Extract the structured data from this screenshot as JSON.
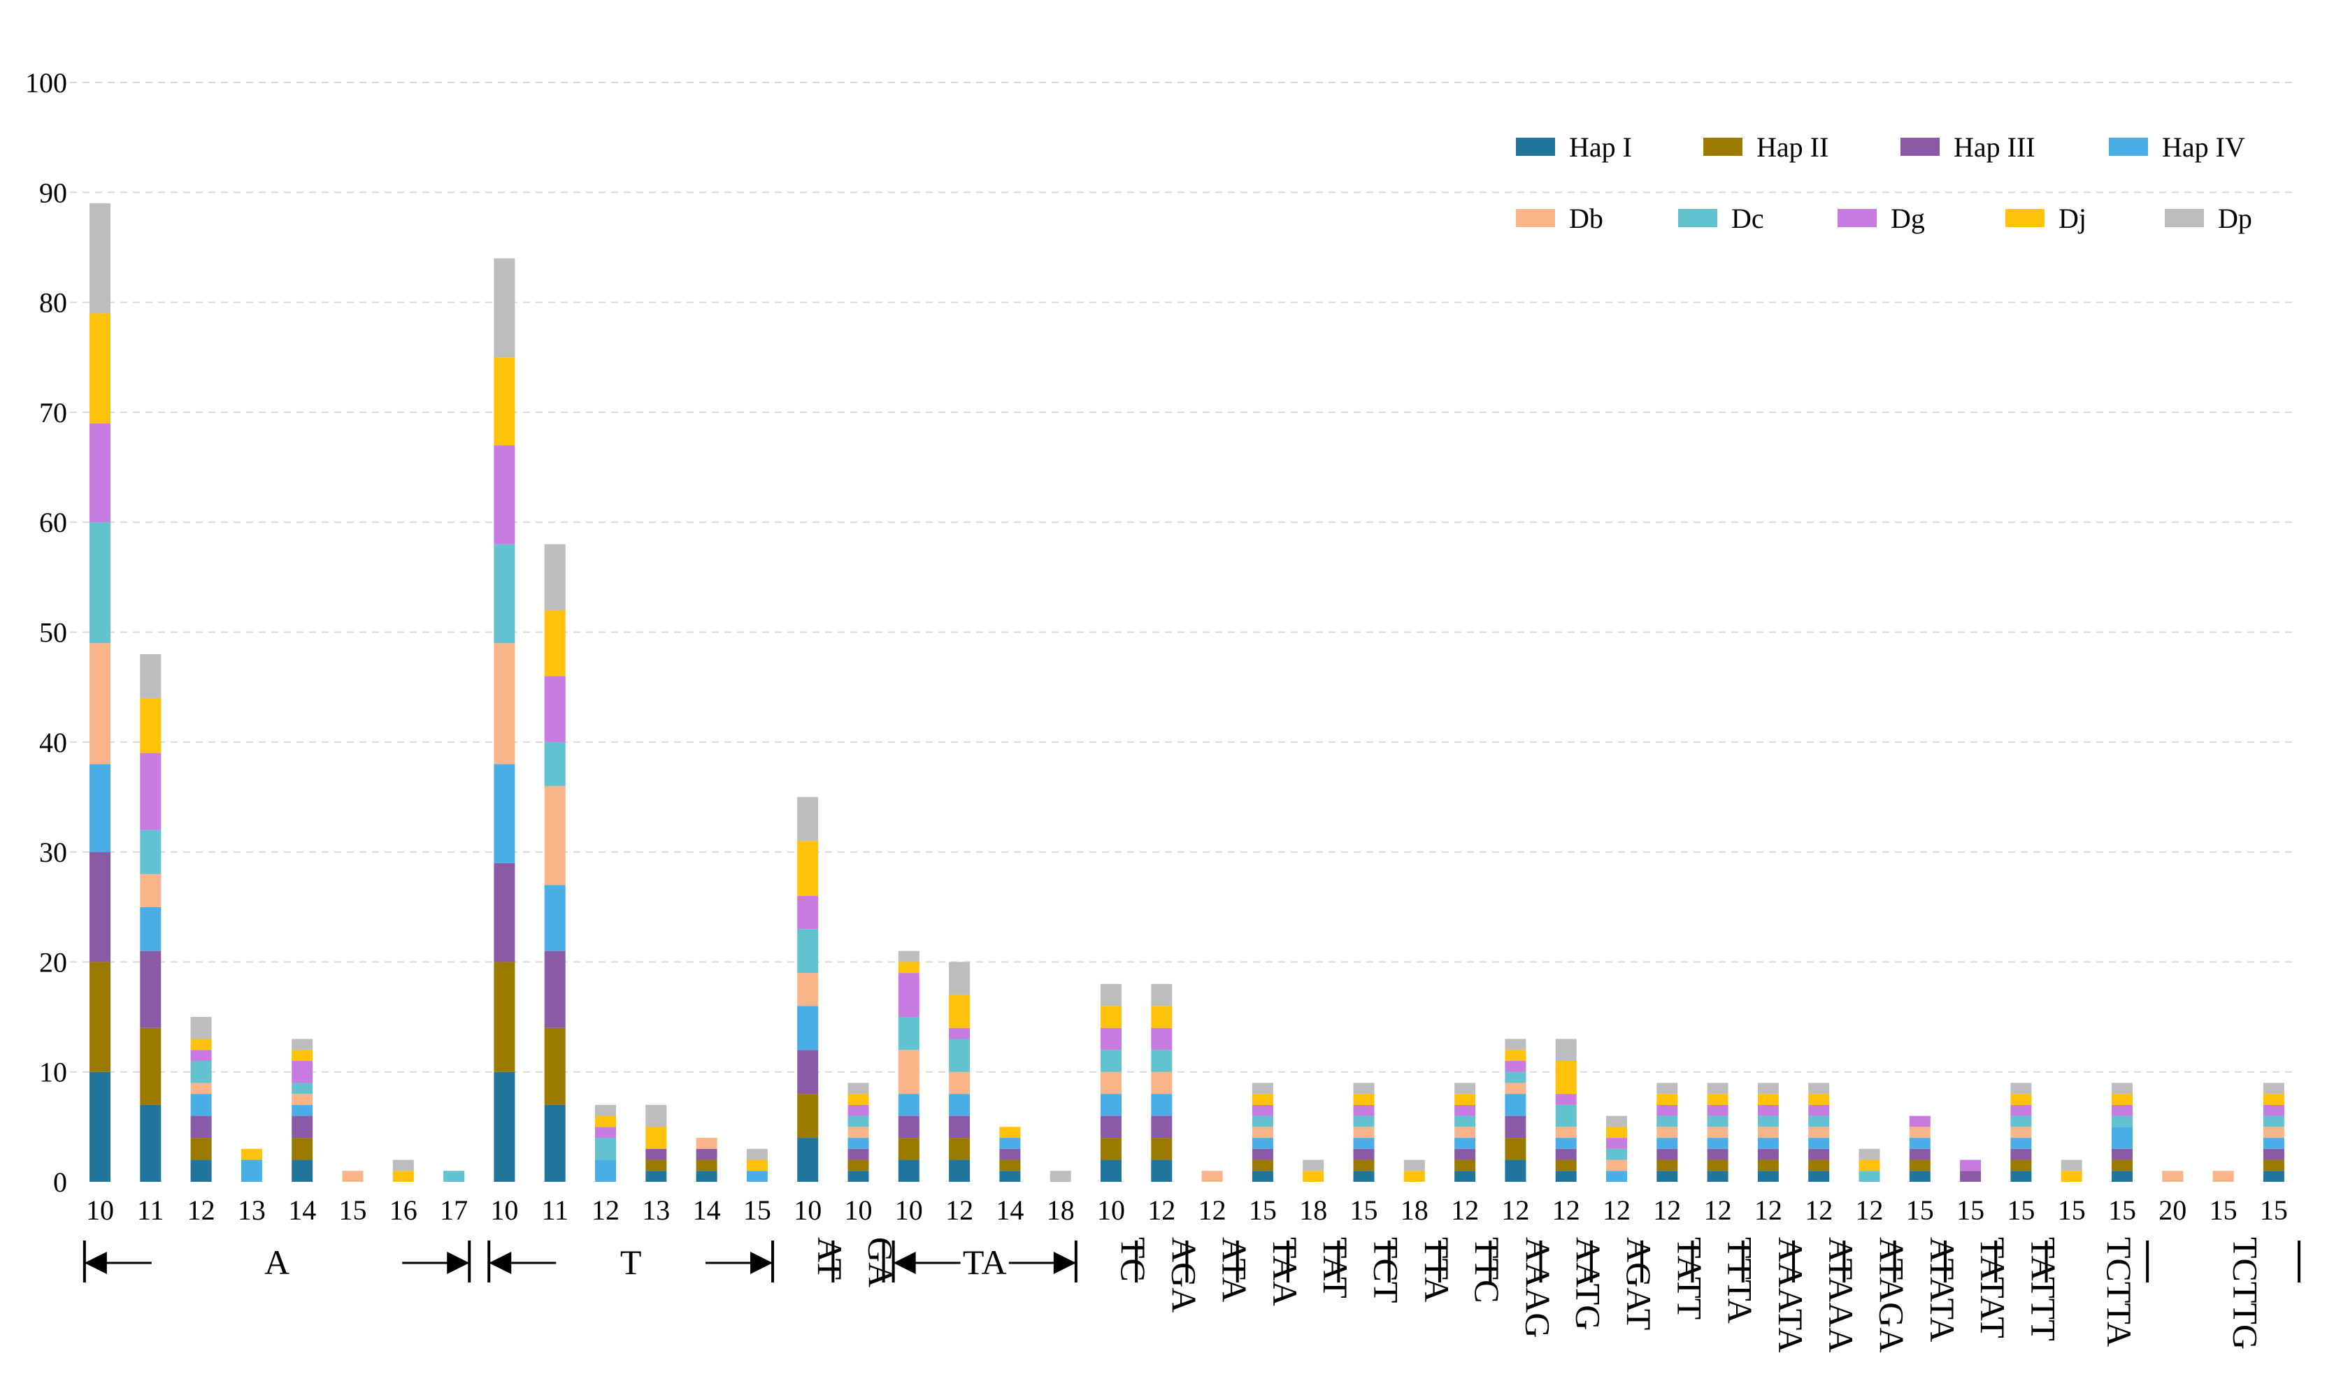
{
  "chart_data": {
    "type": "bar",
    "stacked": true,
    "title": "",
    "xlabel": "",
    "ylabel": "",
    "ylim": [
      0,
      100
    ],
    "yticks": [
      0,
      10,
      20,
      30,
      40,
      50,
      60,
      70,
      80,
      90,
      100
    ],
    "grid": "horizontal dashed",
    "legend_position": "top-right",
    "categories": [
      "10",
      "11",
      "12",
      "13",
      "14",
      "15",
      "16",
      "17",
      "10",
      "11",
      "12",
      "13",
      "14",
      "15",
      "10",
      "10",
      "10",
      "12",
      "14",
      "18",
      "10",
      "12",
      "12",
      "15",
      "18",
      "15",
      "18",
      "12",
      "12",
      "12",
      "12",
      "12",
      "12",
      "12",
      "12",
      "12",
      "15",
      "15",
      "15",
      "15",
      "15",
      "20",
      "15",
      "15"
    ],
    "groups": [
      {
        "label": "A",
        "start": 0,
        "end": 7,
        "arrow": true
      },
      {
        "label": "T",
        "start": 8,
        "end": 13,
        "arrow": true
      },
      {
        "label": "AT",
        "start": 14,
        "end": 14,
        "arrow": false
      },
      {
        "label": "GA",
        "start": 15,
        "end": 15,
        "arrow": false
      },
      {
        "label": "TA",
        "start": 16,
        "end": 19,
        "arrow": true
      },
      {
        "label": "TC",
        "start": 20,
        "end": 20,
        "arrow": false
      },
      {
        "label": "AGA",
        "start": 21,
        "end": 21,
        "arrow": false
      },
      {
        "label": "ATA",
        "start": 22,
        "end": 22,
        "arrow": false
      },
      {
        "label": "TAA",
        "start": 23,
        "end": 23,
        "arrow": false
      },
      {
        "label": "TAT",
        "start": 24,
        "end": 24,
        "arrow": false
      },
      {
        "label": "TCT",
        "start": 25,
        "end": 25,
        "arrow": false
      },
      {
        "label": "TTA",
        "start": 26,
        "end": 26,
        "arrow": false
      },
      {
        "label": "TTC",
        "start": 27,
        "end": 27,
        "arrow": false
      },
      {
        "label": "AAAG",
        "start": 28,
        "end": 28,
        "arrow": false
      },
      {
        "label": "AATG",
        "start": 29,
        "end": 29,
        "arrow": false
      },
      {
        "label": "AGAT",
        "start": 30,
        "end": 30,
        "arrow": false
      },
      {
        "label": "TATT",
        "start": 31,
        "end": 31,
        "arrow": false
      },
      {
        "label": "TTTA",
        "start": 32,
        "end": 32,
        "arrow": false
      },
      {
        "label": "AAATA",
        "start": 33,
        "end": 33,
        "arrow": false
      },
      {
        "label": "ATAAA",
        "start": 34,
        "end": 34,
        "arrow": false
      },
      {
        "label": "ATAGA",
        "start": 35,
        "end": 35,
        "arrow": false
      },
      {
        "label": "ATATA",
        "start": 36,
        "end": 36,
        "arrow": false
      },
      {
        "label": "TATAT",
        "start": 37,
        "end": 37,
        "arrow": false
      },
      {
        "label": "TATTT",
        "start": 38,
        "end": 38,
        "arrow": false
      },
      {
        "label": "TCTTA",
        "start": 39,
        "end": 40,
        "arrow": false
      },
      {
        "label": "TCTTG",
        "start": 41,
        "end": 43,
        "arrow": false
      }
    ],
    "series": [
      {
        "name": "Hap I",
        "color": "#21759B",
        "values": [
          10,
          7,
          2,
          0,
          2,
          0,
          0,
          0,
          10,
          7,
          0,
          1,
          1,
          0,
          4,
          1,
          2,
          2,
          1,
          0,
          2,
          2,
          0,
          1,
          0,
          1,
          0,
          1,
          2,
          1,
          0,
          1,
          1,
          1,
          1,
          0,
          1,
          0,
          1,
          0,
          1,
          0,
          0,
          1
        ]
      },
      {
        "name": "Hap II",
        "color": "#9C7A00",
        "values": [
          10,
          7,
          2,
          0,
          2,
          0,
          0,
          0,
          10,
          7,
          0,
          1,
          1,
          0,
          4,
          1,
          2,
          2,
          1,
          0,
          2,
          2,
          0,
          1,
          0,
          1,
          0,
          1,
          2,
          1,
          0,
          1,
          1,
          1,
          1,
          0,
          1,
          0,
          1,
          0,
          1,
          0,
          0,
          1
        ]
      },
      {
        "name": "Hap III",
        "color": "#8A5AA6",
        "values": [
          10,
          7,
          2,
          0,
          2,
          0,
          0,
          0,
          9,
          7,
          0,
          1,
          1,
          0,
          4,
          1,
          2,
          2,
          1,
          0,
          2,
          2,
          0,
          1,
          0,
          1,
          0,
          1,
          2,
          1,
          0,
          1,
          1,
          1,
          1,
          0,
          1,
          1,
          1,
          0,
          1,
          0,
          0,
          1
        ]
      },
      {
        "name": "Hap IV",
        "color": "#4AAEE6",
        "values": [
          8,
          4,
          2,
          2,
          1,
          0,
          0,
          0,
          9,
          6,
          2,
          0,
          0,
          1,
          4,
          1,
          2,
          2,
          1,
          0,
          2,
          2,
          0,
          1,
          0,
          1,
          0,
          1,
          2,
          1,
          1,
          1,
          1,
          1,
          1,
          0,
          1,
          0,
          1,
          0,
          2,
          0,
          0,
          1
        ]
      },
      {
        "name": "Db",
        "color": "#F9B48A",
        "values": [
          11,
          3,
          1,
          0,
          1,
          1,
          0,
          0,
          11,
          9,
          0,
          0,
          1,
          0,
          3,
          1,
          4,
          2,
          0,
          0,
          2,
          2,
          1,
          1,
          0,
          1,
          0,
          1,
          1,
          1,
          1,
          1,
          1,
          1,
          1,
          0,
          1,
          0,
          1,
          0,
          0,
          1,
          1,
          1
        ]
      },
      {
        "name": "Dc",
        "color": "#62C2CF",
        "values": [
          11,
          4,
          2,
          0,
          1,
          0,
          0,
          1,
          9,
          4,
          2,
          0,
          0,
          0,
          4,
          1,
          3,
          3,
          0,
          0,
          2,
          2,
          0,
          1,
          0,
          1,
          0,
          1,
          1,
          2,
          1,
          1,
          1,
          1,
          1,
          1,
          0,
          0,
          1,
          0,
          1,
          0,
          0,
          1
        ]
      },
      {
        "name": "Dg",
        "color": "#C77BE0",
        "values": [
          9,
          7,
          1,
          0,
          2,
          0,
          0,
          0,
          9,
          6,
          1,
          0,
          0,
          0,
          3,
          1,
          4,
          1,
          0,
          0,
          2,
          2,
          0,
          1,
          0,
          1,
          0,
          1,
          1,
          1,
          1,
          1,
          1,
          1,
          1,
          0,
          1,
          1,
          1,
          0,
          1,
          0,
          0,
          1
        ]
      },
      {
        "name": "Dj",
        "color": "#FFC20A",
        "values": [
          10,
          5,
          1,
          1,
          1,
          0,
          1,
          0,
          8,
          6,
          1,
          2,
          0,
          1,
          5,
          1,
          1,
          3,
          1,
          0,
          2,
          2,
          0,
          1,
          1,
          1,
          1,
          1,
          1,
          3,
          1,
          1,
          1,
          1,
          1,
          1,
          0,
          0,
          1,
          1,
          1,
          0,
          0,
          1
        ]
      },
      {
        "name": "Dp",
        "color": "#BDBDBD",
        "values": [
          10,
          4,
          2,
          0,
          1,
          0,
          1,
          0,
          9,
          6,
          1,
          2,
          0,
          1,
          4,
          1,
          1,
          3,
          0,
          1,
          2,
          2,
          0,
          1,
          1,
          1,
          1,
          1,
          1,
          2,
          1,
          1,
          1,
          1,
          1,
          1,
          0,
          0,
          1,
          1,
          1,
          0,
          0,
          1
        ]
      }
    ]
  }
}
